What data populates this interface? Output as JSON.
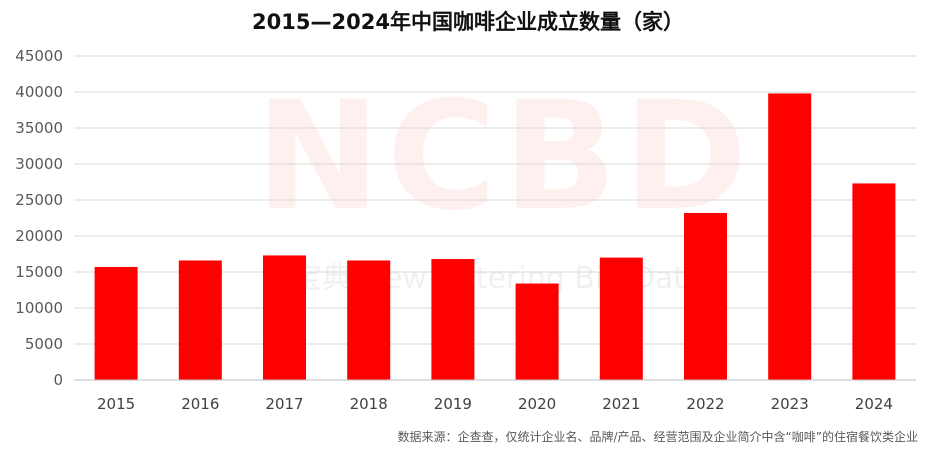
{
  "chart_data": {
    "type": "bar",
    "title": "2015—2024年中国咖啡企业成立数量（家）",
    "categories": [
      "2015",
      "2016",
      "2017",
      "2018",
      "2019",
      "2020",
      "2021",
      "2022",
      "2023",
      "2024"
    ],
    "values": [
      15700,
      16600,
      17300,
      16600,
      16800,
      13400,
      17000,
      23200,
      39800,
      27300
    ],
    "ylim": [
      0,
      45000
    ],
    "yticks": [
      0,
      5000,
      10000,
      15000,
      20000,
      25000,
      30000,
      35000,
      40000,
      45000
    ],
    "xlabel": "",
    "ylabel": "",
    "grid": true,
    "bar_color": "#ff0000",
    "grid_color": "#d9d9d9"
  },
  "footnote": "数据来源：企查查，仅统计企业名、品牌/产品、经营范围及企业简介中含“咖啡”的住宿餐饮类企业",
  "watermark": {
    "logo": "NCBD",
    "subtitle": "餐宝典 New Catering Big Data"
  }
}
